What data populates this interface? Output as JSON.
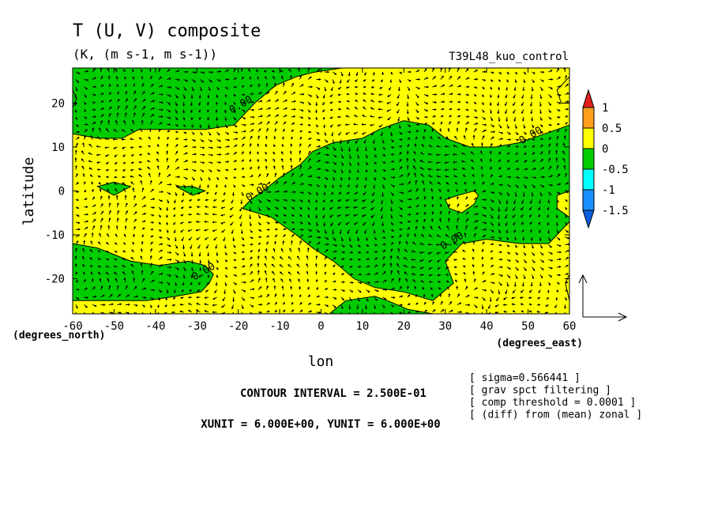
{
  "chart_data": {
    "type": "heatmap",
    "title": "T (U, V) composite",
    "subtitle": "(K, (m s-1, m s-1))",
    "experiment": "T39L48_kuo_control",
    "xlabel": "lon",
    "ylabel": "latitude",
    "x_unit_label": "(degrees_east)",
    "y_unit_label": "(degrees_north)",
    "xlim": [
      -60,
      60
    ],
    "ylim": [
      -28,
      28
    ],
    "x_ticks": [
      -60,
      -50,
      -40,
      -30,
      -20,
      -10,
      0,
      10,
      20,
      30,
      40,
      50,
      60
    ],
    "x_tick_labels": [
      "-60",
      "-50",
      "-40",
      "-30",
      "-20",
      "-10",
      "0",
      "10",
      "20",
      "30",
      "40",
      "50",
      "60"
    ],
    "y_ticks": [
      -20,
      -10,
      0,
      10,
      20
    ],
    "y_tick_labels": [
      "-20",
      "-10",
      "0",
      "10",
      "20"
    ],
    "contour_interval": 0.25,
    "contour_labels": [
      {
        "text": "0.00",
        "lon": -19,
        "lat": 19
      },
      {
        "text": "0.00",
        "lon": -15,
        "lat": -1
      },
      {
        "text": "0.00",
        "lon": 32,
        "lat": -12
      },
      {
        "text": "0.00",
        "lon": 51,
        "lat": 12
      },
      {
        "text": "0.00",
        "lon": -28,
        "lat": -19
      }
    ],
    "colorbar": {
      "levels": [
        -1.5,
        -1,
        -0.5,
        0,
        0.5,
        1
      ],
      "labels": [
        "1",
        "0.5",
        "0",
        "-0.5",
        "-1",
        "-1.5"
      ],
      "colors": [
        "#e3211b",
        "#ff9f1c",
        "#ffff00",
        "#00cc00",
        "#00ffff",
        "#1a90ff",
        "#0a5fe0"
      ]
    },
    "field_colors": {
      "positive": "#ffff00",
      "negative": "#00cc00"
    },
    "regions": [
      {
        "level": "0 to 0.5",
        "color": "#ffff00",
        "description": "background"
      },
      {
        "level": "-0.5 to 0",
        "color": "#00cc00",
        "polygon": [
          [
            -60,
            13
          ],
          [
            -54,
            12
          ],
          [
            -48,
            12
          ],
          [
            -44,
            14
          ],
          [
            -36,
            14
          ],
          [
            -28,
            14
          ],
          [
            -21,
            15
          ],
          [
            -16,
            20
          ],
          [
            -11,
            24
          ],
          [
            -6,
            26
          ],
          [
            -2,
            27
          ],
          [
            5,
            28
          ],
          [
            -60,
            28
          ]
        ]
      },
      {
        "level": "-0.5 to 0",
        "color": "#00cc00",
        "polygon": [
          [
            -60,
            23
          ],
          [
            -59,
            21
          ],
          [
            -60,
            19
          ]
        ]
      },
      {
        "level": "-0.5 to 0",
        "color": "#00cc00",
        "polygon": [
          [
            -19,
            -4
          ],
          [
            -17,
            -2
          ],
          [
            -14,
            0
          ],
          [
            -10,
            3
          ],
          [
            -5,
            6
          ],
          [
            -2,
            9
          ],
          [
            3,
            11
          ],
          [
            10,
            12
          ],
          [
            14,
            14
          ],
          [
            20,
            16
          ],
          [
            26,
            15
          ],
          [
            30,
            12
          ],
          [
            36,
            10
          ],
          [
            42,
            10
          ],
          [
            48,
            11
          ],
          [
            54,
            13
          ],
          [
            57,
            14
          ],
          [
            60,
            15
          ],
          [
            60,
            -7
          ],
          [
            55,
            -12
          ],
          [
            48,
            -12
          ],
          [
            40,
            -11
          ],
          [
            34,
            -12
          ],
          [
            30,
            -16
          ],
          [
            32,
            -21
          ],
          [
            27,
            -25
          ],
          [
            20,
            -23
          ],
          [
            13,
            -22
          ],
          [
            8,
            -20
          ],
          [
            3,
            -16
          ],
          [
            -2,
            -13
          ],
          [
            -6,
            -10
          ],
          [
            -9,
            -8
          ],
          [
            -12,
            -6
          ]
        ]
      },
      {
        "level": "-0.5 to 0",
        "color": "#00cc00",
        "polygon": [
          [
            -60,
            -12
          ],
          [
            -54,
            -13
          ],
          [
            -46,
            -16
          ],
          [
            -39,
            -17
          ],
          [
            -32,
            -16
          ],
          [
            -28,
            -17
          ],
          [
            -26,
            -19
          ],
          [
            -27,
            -21
          ],
          [
            -29,
            -23
          ],
          [
            -35,
            -24
          ],
          [
            -42,
            -25
          ],
          [
            -50,
            -25
          ],
          [
            -60,
            -25
          ]
        ]
      },
      {
        "level": "-0.5 to 0",
        "color": "#00cc00",
        "polygon": [
          [
            2,
            -28
          ],
          [
            6,
            -25
          ],
          [
            13,
            -24
          ],
          [
            16,
            -25
          ],
          [
            21,
            -27
          ],
          [
            27,
            -28
          ]
        ]
      },
      {
        "level": "-0.5 to 0",
        "color": "#00cc00",
        "polygon": [
          [
            -54,
            1
          ],
          [
            -50,
            2
          ],
          [
            -46,
            1
          ],
          [
            -50,
            -1
          ]
        ]
      },
      {
        "level": "-0.5 to 0",
        "color": "#00cc00",
        "polygon": [
          [
            -35,
            1
          ],
          [
            -31,
            1
          ],
          [
            -28,
            0
          ],
          [
            -31,
            -1
          ]
        ]
      },
      {
        "level": "0 to 0.5",
        "color": "#ffff00",
        "polygon": [
          [
            30,
            -2
          ],
          [
            33,
            -1
          ],
          [
            37,
            0
          ],
          [
            38,
            -1
          ],
          [
            37,
            -3
          ],
          [
            34,
            -5
          ],
          [
            31,
            -4
          ]
        ]
      },
      {
        "level": "0 to 0.5",
        "color": "#ffff00",
        "polygon": [
          [
            60,
            -6
          ],
          [
            57,
            -4
          ],
          [
            57,
            -1
          ],
          [
            60,
            0
          ]
        ]
      },
      {
        "level": "0 to 0.5",
        "color": "#ffff00",
        "polygon": [
          [
            60,
            -25
          ],
          [
            59,
            -21
          ],
          [
            60,
            -19
          ]
        ]
      },
      {
        "level": "0 to 0.5",
        "color": "#ffff00",
        "polygon": [
          [
            60,
            26
          ],
          [
            57,
            23
          ],
          [
            58,
            20
          ],
          [
            60,
            20
          ]
        ]
      }
    ],
    "vector_reference": {
      "unit_x": 6.0,
      "unit_y": 6.0
    },
    "grid": false
  },
  "footer": {
    "contour_interval": "CONTOUR INTERVAL = 2.500E-01",
    "units": "XUNIT = 6.000E+00, YUNIT = 6.000E+00"
  },
  "notes": [
    "[ sigma=0.566441 ]",
    "[ grav spct filtering ]",
    "[ comp threshold = 0.0001 ]",
    "[ (diff) from (mean) zonal ]"
  ]
}
